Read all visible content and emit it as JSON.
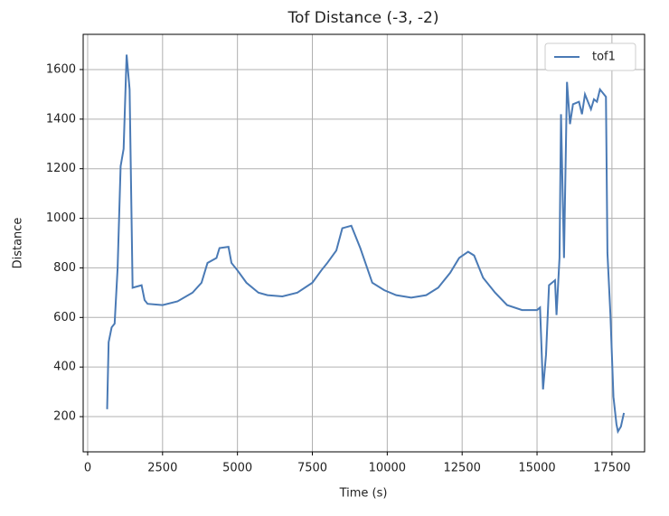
{
  "chart_data": {
    "type": "line",
    "title": "Tof Distance (-3, -2)",
    "x_label": "Time (s)",
    "y_label": "Distance",
    "x": [
      650,
      700,
      800,
      900,
      1000,
      1100,
      1200,
      1300,
      1400,
      1500,
      1800,
      1900,
      2000,
      2500,
      3000,
      3500,
      3800,
      4000,
      4300,
      4400,
      4700,
      4800,
      5000,
      5300,
      5700,
      6000,
      6500,
      7000,
      7500,
      7800,
      8000,
      8300,
      8500,
      8800,
      8900,
      9100,
      9300,
      9500,
      9900,
      10300,
      10800,
      11300,
      11700,
      12100,
      12400,
      12700,
      12900,
      13200,
      13600,
      14000,
      14500,
      15000,
      15100,
      15200,
      15300,
      15400,
      15600,
      15650,
      15750,
      15800,
      15900,
      16000,
      16100,
      16200,
      16400,
      16500,
      16600,
      16800,
      16900,
      17000,
      17100,
      17300,
      17350,
      17450,
      17550,
      17650,
      17700,
      17800,
      17900
    ],
    "series": [
      {
        "name": "tof1",
        "color": "#4a7ab5",
        "values": [
          230,
          500,
          560,
          575,
          800,
          1210,
          1280,
          1660,
          1520,
          720,
          730,
          670,
          655,
          650,
          665,
          700,
          740,
          820,
          840,
          880,
          885,
          820,
          790,
          740,
          700,
          690,
          685,
          700,
          740,
          790,
          820,
          870,
          960,
          970,
          940,
          880,
          810,
          740,
          710,
          690,
          680,
          690,
          720,
          780,
          840,
          865,
          850,
          760,
          700,
          650,
          630,
          630,
          640,
          310,
          450,
          730,
          750,
          610,
          840,
          1420,
          840,
          1550,
          1380,
          1460,
          1470,
          1420,
          1500,
          1440,
          1480,
          1470,
          1520,
          1490,
          860,
          610,
          280,
          170,
          140,
          160,
          215
        ]
      }
    ],
    "xlim": [
      -150,
      18590
    ],
    "ylim": [
      58,
      1742
    ],
    "xticks": [
      0,
      2500,
      5000,
      7500,
      10000,
      12500,
      15000,
      17500
    ],
    "yticks": [
      200,
      400,
      600,
      800,
      1000,
      1200,
      1400,
      1600
    ],
    "grid": true,
    "legend": "upper right"
  }
}
